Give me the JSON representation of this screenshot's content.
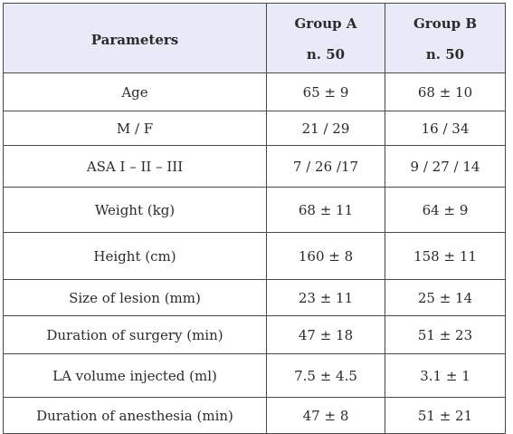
{
  "header": {
    "parameters": "Parameters",
    "group_a": "Group A",
    "group_a_n": "n. 50",
    "group_b": "Group B",
    "group_b_n": "n. 50"
  },
  "rows": [
    {
      "label": "Age",
      "a": "65 ± 9",
      "b": "68 ± 10"
    },
    {
      "label": "M / F",
      "a": "21 / 29",
      "b": "16 / 34"
    },
    {
      "label": "ASA I – II – III",
      "a": "7 / 26 /17",
      "b": "9 / 27 / 14"
    },
    {
      "label": "Weight (kg)",
      "a": "68 ± 11",
      "b": "64 ± 9"
    },
    {
      "label": "Height (cm)",
      "a": "160 ± 8",
      "b": "158 ± 11"
    },
    {
      "label": "Size of lesion (mm)",
      "a": "23 ± 11",
      "b": "25 ± 14"
    },
    {
      "label": "Duration of surgery (min)",
      "a": "47 ± 18",
      "b": "51 ± 23"
    },
    {
      "label": "LA volume injected (ml)",
      "a": "7.5 ± 4.5",
      "b": "3.1 ± 1"
    },
    {
      "label": "Duration of anesthesia (min)",
      "a": "47 ± 8",
      "b": "51 ± 21"
    }
  ]
}
